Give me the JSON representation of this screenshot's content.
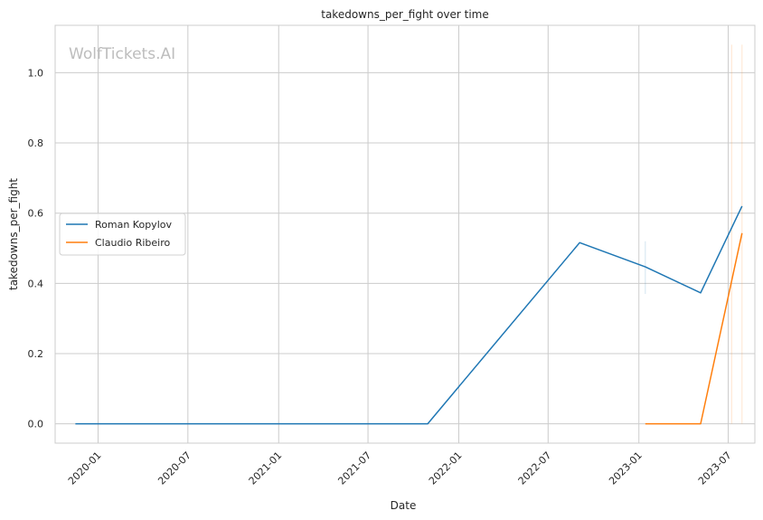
{
  "chart_data": {
    "type": "line",
    "title": "takedowns_per_fight over time",
    "xlabel": "Date",
    "ylabel": "takedowns_per_fight",
    "watermark": "WolfTickets.AI",
    "xlim": [
      "2019-10-06",
      "2023-08-24"
    ],
    "ylim": [
      -0.055,
      1.135
    ],
    "x_ticks": [
      "2020-01",
      "2020-07",
      "2021-01",
      "2021-07",
      "2022-01",
      "2022-07",
      "2023-01",
      "2023-07"
    ],
    "y_ticks": [
      "0.0",
      "0.2",
      "0.4",
      "0.6",
      "0.8",
      "1.0"
    ],
    "grid": true,
    "legend_position": "center-left",
    "series": [
      {
        "name": "Roman Kopylov",
        "color": "#1f77b4",
        "points": [
          {
            "x": "2019-11-16",
            "y": 0.0
          },
          {
            "x": "2021-10-30",
            "y": 0.0
          },
          {
            "x": "2022-09-03",
            "y": 0.516
          },
          {
            "x": "2023-01-14",
            "y": 0.447
          },
          {
            "x": "2023-05-06",
            "y": 0.373
          },
          {
            "x": "2023-07-29",
            "y": 0.62
          }
        ],
        "error_bars": [
          {
            "x": "2023-01-14",
            "low": 0.37,
            "high": 0.52
          }
        ]
      },
      {
        "name": "Claudio Ribeiro",
        "color": "#ff7f0e",
        "points": [
          {
            "x": "2023-01-14",
            "y": 0.0
          },
          {
            "x": "2023-05-06",
            "y": 0.0
          },
          {
            "x": "2023-07-29",
            "y": 0.543
          }
        ],
        "error_bars": [
          {
            "x": "2023-07-08",
            "low": 0.0,
            "high": 1.08
          },
          {
            "x": "2023-07-29",
            "low": 0.0,
            "high": 1.08
          }
        ]
      }
    ]
  }
}
